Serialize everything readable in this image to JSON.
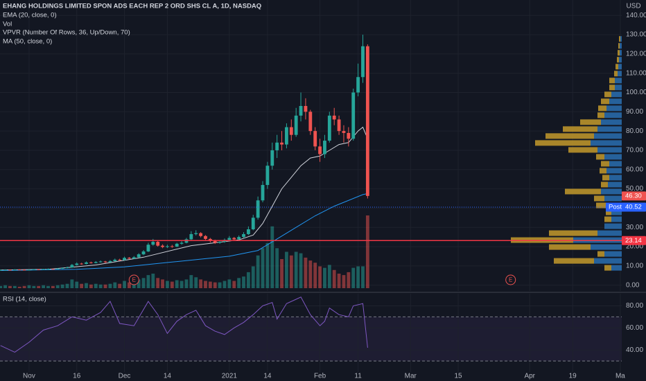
{
  "chart_data": [
    {
      "type": "candlestick",
      "title": "EHANG HOLDINGS LIMITED SPON ADS EACH REP 2 ORD SHS CL A, 1D, NASDAQ",
      "currency": "USD",
      "x": [
        -6,
        -5,
        -4,
        -3,
        -2,
        -1,
        0,
        1,
        2,
        3,
        4,
        5,
        6,
        7,
        8,
        9,
        10,
        11,
        12,
        13,
        14,
        15,
        16,
        17,
        18,
        19,
        20,
        21,
        22,
        23,
        24,
        25,
        26,
        27,
        28,
        29,
        30,
        31,
        32,
        33,
        34,
        35,
        36,
        37,
        38,
        39,
        40,
        41,
        42,
        43,
        44,
        45,
        46,
        47,
        48,
        49,
        50,
        51,
        52,
        53,
        54,
        55,
        56,
        57,
        58,
        59,
        60,
        61,
        62,
        63,
        64,
        65,
        66,
        67,
        68,
        69,
        70,
        71
      ],
      "open": [
        7.8,
        7.9,
        8.0,
        7.8,
        8.1,
        8.0,
        7.9,
        8.0,
        8.2,
        8.1,
        8.3,
        8.4,
        8.3,
        8.6,
        8.9,
        9.2,
        10.5,
        11.2,
        11.0,
        11.8,
        11.5,
        12.0,
        12.3,
        11.9,
        12.5,
        13.2,
        13.0,
        14.2,
        13.8,
        14.5,
        16.0,
        17.5,
        21.0,
        22.5,
        20.5,
        19.8,
        20.2,
        20.0,
        21.5,
        22.0,
        23.8,
        26.5,
        27.0,
        25.5,
        24.0,
        23.0,
        22.0,
        22.5,
        23.5,
        24.5,
        23.8,
        25.0,
        26.5,
        29.0,
        35.0,
        44.0,
        52,
        62,
        70,
        74,
        73,
        82,
        78,
        88,
        93,
        90,
        80,
        72,
        68,
        75,
        88,
        86,
        80,
        79,
        76,
        100,
        108,
        124
      ],
      "high": [
        8.1,
        8.2,
        8.1,
        8.3,
        8.3,
        8.2,
        8.2,
        8.4,
        8.4,
        8.5,
        8.7,
        8.6,
        8.9,
        9.2,
        9.6,
        11.0,
        11.8,
        11.6,
        12.3,
        12.2,
        12.5,
        12.8,
        12.6,
        13.0,
        13.8,
        13.7,
        14.8,
        14.6,
        15.1,
        16.6,
        18.2,
        22.0,
        24.0,
        23.0,
        21.2,
        21.0,
        20.9,
        22.0,
        22.8,
        24.5,
        28.0,
        28.5,
        27.5,
        26.0,
        24.5,
        23.6,
        23.3,
        24.2,
        25.5,
        25.0,
        25.8,
        27.5,
        30.5,
        36.5,
        46.0,
        54.0,
        64,
        74,
        78,
        80,
        84,
        86,
        92,
        100,
        97,
        91,
        82,
        76,
        78,
        90,
        92,
        88,
        83,
        82,
        102,
        115,
        130,
        125
      ],
      "low": [
        7.6,
        7.7,
        7.6,
        7.7,
        7.8,
        7.7,
        7.7,
        7.9,
        7.9,
        8.0,
        8.1,
        8.1,
        8.2,
        8.4,
        8.7,
        9.0,
        10.2,
        10.6,
        10.8,
        11.2,
        11.3,
        11.7,
        11.5,
        11.7,
        12.3,
        12.6,
        12.8,
        13.4,
        13.5,
        14.2,
        15.6,
        17.2,
        20.5,
        20.0,
        19.2,
        19.3,
        19.4,
        19.8,
        21.0,
        21.7,
        23.5,
        25.8,
        24.8,
        23.5,
        22.2,
        21.4,
        21.5,
        22.0,
        23.0,
        23.0,
        23.4,
        24.6,
        26.0,
        28.5,
        34.0,
        43.0,
        50,
        60,
        66,
        70,
        71,
        75,
        77,
        85,
        86,
        78,
        70,
        64,
        66,
        74,
        83,
        78,
        74,
        72,
        75,
        98,
        105,
        45
      ],
      "close": [
        7.9,
        8.0,
        7.8,
        8.1,
        8.0,
        7.9,
        8.0,
        8.2,
        8.1,
        8.3,
        8.4,
        8.3,
        8.6,
        8.9,
        9.2,
        10.5,
        11.2,
        11.0,
        11.8,
        11.5,
        12.0,
        12.3,
        11.9,
        12.5,
        13.2,
        13.0,
        14.2,
        13.8,
        14.5,
        16.0,
        17.5,
        21.0,
        22.5,
        20.5,
        19.8,
        20.2,
        20.0,
        21.5,
        22.0,
        23.8,
        26.5,
        27.0,
        25.5,
        24.0,
        23.0,
        22.0,
        22.5,
        23.5,
        24.5,
        23.8,
        25.0,
        26.5,
        29.0,
        35.0,
        44.0,
        52.0,
        62.0,
        70.0,
        74.0,
        73.0,
        82.0,
        78.0,
        88.0,
        93.0,
        90.0,
        80.0,
        72.0,
        68.0,
        75.0,
        88.0,
        86.0,
        80.0,
        79.0,
        76.0,
        100.0,
        108.0,
        124.0,
        46.3
      ],
      "up_color": "#26a69a",
      "down_color": "#ef5350",
      "xlim": [
        -6.1,
        124.3
      ],
      "ylim": [
        -3,
        148
      ],
      "yticks": [
        {
          "value": 0,
          "label": "0.00"
        },
        {
          "value": 10,
          "label": "10.00"
        },
        {
          "value": 20,
          "label": "20.00"
        },
        {
          "value": 30,
          "label": "30.00"
        },
        {
          "value": 40,
          "label": "40.00"
        },
        {
          "value": 50,
          "label": "50.00"
        },
        {
          "value": 60,
          "label": "60.00"
        },
        {
          "value": 70,
          "label": "70.00"
        },
        {
          "value": 80,
          "label": "80.00"
        },
        {
          "value": 90,
          "label": "90.00"
        },
        {
          "value": 100,
          "label": "100.00"
        },
        {
          "value": 110,
          "label": "110.00"
        },
        {
          "value": 120,
          "label": "120.00"
        },
        {
          "value": 130,
          "label": "130.00"
        },
        {
          "value": 140,
          "label": "140.00"
        }
      ],
      "xticks": [
        {
          "value": 0,
          "label": "Nov"
        },
        {
          "value": 10,
          "label": "16"
        },
        {
          "value": 20,
          "label": "Dec"
        },
        {
          "value": 29,
          "label": "14"
        },
        {
          "value": 42,
          "label": "2021"
        },
        {
          "value": 50,
          "label": "14"
        },
        {
          "value": 61,
          "label": "Feb"
        },
        {
          "value": 69,
          "label": "11"
        },
        {
          "value": 80,
          "label": "Mar"
        },
        {
          "value": 90,
          "label": "15"
        },
        {
          "value": 105,
          "label": "Apr"
        },
        {
          "value": 114,
          "label": "19"
        },
        {
          "value": 124,
          "label": "Ma"
        }
      ],
      "grid": true,
      "overlays": [
        {
          "name": "EMA (20, close, 0)",
          "color": "#d1d4dc",
          "x": [
            -6,
            4,
            14,
            24,
            34,
            44,
            47,
            49,
            51,
            53,
            55,
            57,
            59,
            61,
            63,
            65,
            67,
            69,
            70,
            71
          ],
          "values": [
            7.9,
            8.2,
            10.5,
            14.5,
            20.5,
            23.5,
            26,
            32,
            41,
            50,
            56,
            62,
            66,
            67,
            70,
            73,
            74,
            80,
            82,
            76
          ]
        },
        {
          "name": "MA (50, close, 0)",
          "color": "#2196f3",
          "x": [
            -6,
            10,
            20,
            30,
            42,
            48,
            52,
            56,
            60,
            64,
            68,
            70,
            71
          ],
          "values": [
            7.6,
            8.2,
            9.5,
            12,
            15,
            18,
            24,
            30,
            36,
            41,
            45,
            47,
            47.5
          ]
        }
      ],
      "volume": {
        "name": "Vol",
        "values": [
          3,
          4,
          3,
          3,
          2,
          3,
          4,
          3,
          3,
          4,
          3,
          3,
          4,
          5,
          6,
          12,
          9,
          6,
          7,
          5,
          6,
          5,
          5,
          6,
          8,
          6,
          10,
          8,
          9,
          12,
          14,
          18,
          20,
          14,
          12,
          10,
          9,
          11,
          10,
          12,
          18,
          15,
          12,
          10,
          9,
          8,
          8,
          10,
          12,
          10,
          14,
          16,
          22,
          30,
          45,
          55,
          62,
          85,
          55,
          40,
          50,
          45,
          50,
          48,
          42,
          38,
          35,
          30,
          28,
          32,
          25,
          20,
          18,
          22,
          28,
          30,
          30,
          100
        ]
      },
      "volume_profile": {
        "name": "VPVR (Number Of Rows, 36, Up/Down, 70)",
        "range": [
          0,
          129.6
        ],
        "up_color": "#2a6fb0",
        "down_color": "#c49a2c",
        "up": [
          0,
          0,
          15,
          40,
          25,
          45,
          70,
          35,
          25,
          15,
          15,
          22,
          25,
          30,
          20,
          18,
          22,
          18,
          25,
          35,
          45,
          40,
          35,
          30,
          25,
          22,
          18,
          15,
          10,
          10,
          6,
          5,
          4,
          3,
          3,
          2
        ],
        "down": [
          0,
          0,
          10,
          58,
          10,
          60,
          90,
          70,
          0,
          10,
          8,
          15,
          15,
          52,
          10,
          10,
          10,
          12,
          12,
          42,
          80,
          70,
          50,
          30,
          10,
          12,
          12,
          10,
          8,
          8,
          5,
          4,
          3,
          3,
          2,
          2
        ]
      },
      "price_tags": [
        {
          "name": "Post",
          "value": 40.52,
          "label": "40.52",
          "color": "#2962ff",
          "style": "dotted"
        },
        {
          "value": 46.3,
          "label": "46.30",
          "color": "#ef5350",
          "style": "none"
        },
        {
          "value": 23.14,
          "label": "23.14",
          "color": "#f23645",
          "style": "solid"
        }
      ],
      "events": [
        {
          "x": 22,
          "label": "E"
        },
        {
          "x": 101,
          "label": "E"
        }
      ]
    },
    {
      "type": "line",
      "title": "RSI (14, close)",
      "color": "#7e57c2",
      "x": [
        -6,
        -3,
        0,
        3,
        6,
        9,
        12,
        15,
        17,
        19,
        22,
        25,
        27,
        29,
        31,
        33,
        35,
        37,
        39,
        41,
        43,
        45,
        47,
        49,
        51,
        52,
        54,
        56,
        57,
        59,
        61,
        62,
        63,
        65,
        67,
        68,
        70,
        71
      ],
      "values": [
        44,
        38,
        47,
        58,
        62,
        70,
        67,
        74,
        84,
        64,
        62,
        84,
        72,
        55,
        66,
        72,
        76,
        62,
        57,
        54,
        60,
        65,
        72,
        80,
        83,
        68,
        82,
        86,
        88,
        72,
        62,
        66,
        78,
        72,
        70,
        80,
        82,
        42
      ],
      "ylim": [
        20,
        91
      ],
      "yticks": [
        {
          "value": 40,
          "label": "40.00"
        },
        {
          "value": 60,
          "label": "60.00"
        },
        {
          "value": 80,
          "label": "80.00"
        }
      ],
      "bands": [
        30,
        70
      ]
    }
  ]
}
